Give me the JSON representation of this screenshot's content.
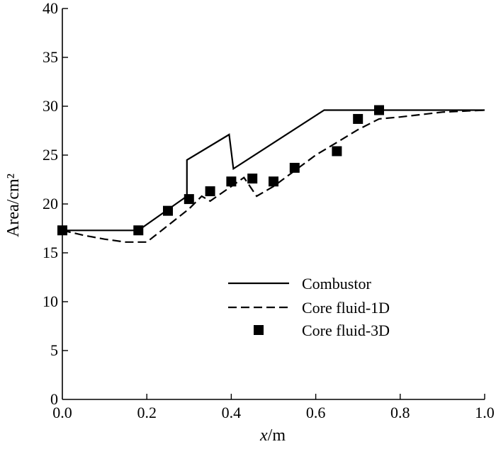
{
  "chart_data": {
    "type": "line",
    "xlabel_italic": "x",
    "xlabel_rest": "/m",
    "ylabel": "Area/cm²",
    "xlim": [
      0.0,
      1.0
    ],
    "ylim": [
      0,
      40
    ],
    "x_ticks": [
      "0.0",
      "0.2",
      "0.4",
      "0.6",
      "0.8",
      "1.0"
    ],
    "y_ticks": [
      "0",
      "5",
      "10",
      "15",
      "20",
      "25",
      "30",
      "35",
      "40"
    ],
    "grid": false,
    "legend_position": "lower-right",
    "series": [
      {
        "name": "Combustor",
        "style": "solid",
        "color": "#000000",
        "x": [
          0.0,
          0.18,
          0.295,
          0.295,
          0.395,
          0.405,
          0.62,
          1.0
        ],
        "y": [
          17.3,
          17.3,
          20.8,
          24.5,
          27.1,
          23.6,
          29.6,
          29.6
        ]
      },
      {
        "name": "Core fluid-1D",
        "style": "dashed",
        "color": "#000000",
        "x": [
          0.0,
          0.05,
          0.1,
          0.15,
          0.2,
          0.25,
          0.3,
          0.33,
          0.35,
          0.4,
          0.43,
          0.46,
          0.5,
          0.55,
          0.6,
          0.65,
          0.7,
          0.75,
          0.8,
          0.9,
          1.0
        ],
        "y": [
          17.3,
          16.8,
          16.4,
          16.1,
          16.1,
          17.8,
          19.5,
          20.8,
          20.3,
          21.8,
          22.7,
          20.8,
          21.8,
          23.4,
          25.0,
          26.3,
          27.6,
          28.7,
          28.9,
          29.4,
          29.6
        ]
      },
      {
        "name": "Core fluid-3D",
        "style": "square-markers",
        "color": "#000000",
        "x": [
          0.0,
          0.18,
          0.25,
          0.3,
          0.35,
          0.4,
          0.45,
          0.5,
          0.55,
          0.65,
          0.7,
          0.75
        ],
        "y": [
          17.3,
          17.3,
          19.3,
          20.5,
          21.3,
          22.3,
          22.6,
          22.3,
          23.7,
          25.4,
          28.7,
          29.6
        ]
      }
    ]
  }
}
